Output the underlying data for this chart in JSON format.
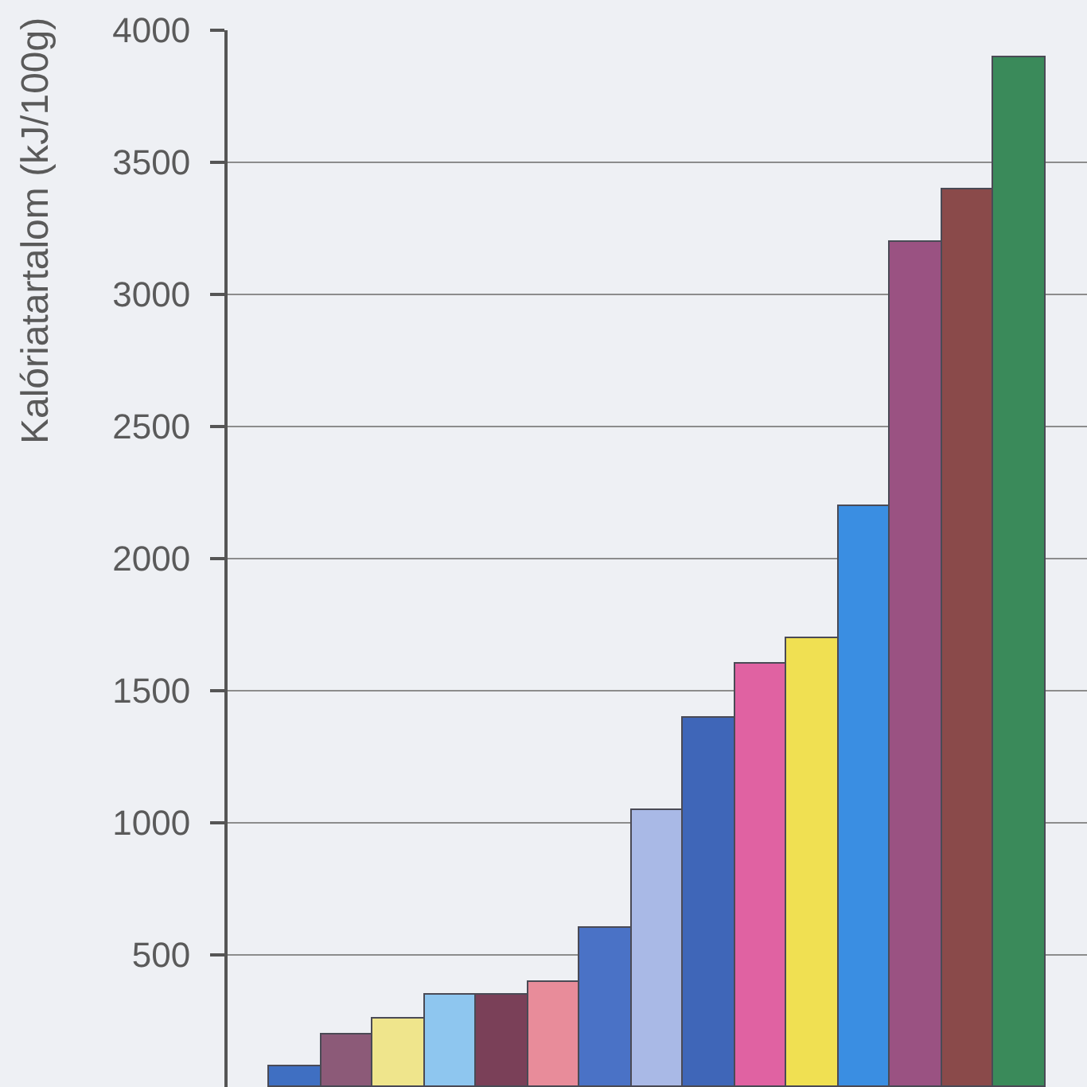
{
  "chart_data": {
    "type": "bar",
    "ylabel": "Kalóriatartalom (kJ/100g)",
    "categories": [
      null,
      null,
      null,
      null,
      null,
      null,
      null,
      null,
      null,
      null,
      null,
      null,
      null,
      null,
      null
    ],
    "values": [
      80,
      200,
      260,
      350,
      350,
      400,
      600,
      1050,
      1400,
      1600,
      1700,
      2200,
      3200,
      3400,
      3900
    ],
    "colors": [
      "#3f6fc2",
      "#8c5a78",
      "#efe58c",
      "#8ec6ef",
      "#7a4058",
      "#e88c9a",
      "#4a72c6",
      "#a9b9e6",
      "#3f66b8",
      "#e062a2",
      "#f0e052",
      "#3a8ee2",
      "#9a5282",
      "#8a4a4a",
      "#3a8a5a"
    ],
    "ylim": [
      0,
      4000
    ],
    "yticks": [
      500,
      1000,
      1500,
      2000,
      2500,
      3000,
      3500,
      4000
    ],
    "grid": "y",
    "tick_labels": "y"
  }
}
